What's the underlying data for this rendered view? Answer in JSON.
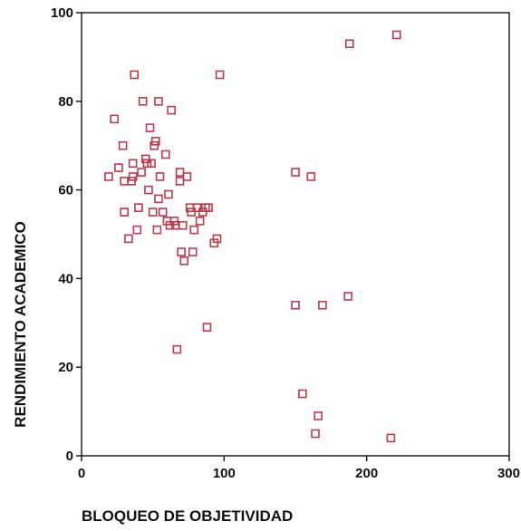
{
  "chart_data": {
    "type": "scatter",
    "title": "",
    "xlabel": "BLOQUEO DE OBJETIVIDAD",
    "ylabel": "RENDIMIENTO ACADEMICO",
    "xlim": [
      0,
      300
    ],
    "ylim": [
      0,
      100
    ],
    "x_ticks": [
      0,
      100,
      200,
      300
    ],
    "y_ticks": [
      0,
      20,
      40,
      60,
      80,
      100
    ],
    "grid": false,
    "marker": "open-square",
    "marker_color": "#c0394a",
    "points": [
      [
        19,
        63
      ],
      [
        23,
        76
      ],
      [
        26,
        65
      ],
      [
        29,
        70
      ],
      [
        30,
        62
      ],
      [
        30,
        55
      ],
      [
        33,
        49
      ],
      [
        35,
        62
      ],
      [
        36,
        66
      ],
      [
        36,
        63
      ],
      [
        37,
        86
      ],
      [
        39,
        51
      ],
      [
        40,
        56
      ],
      [
        42,
        64
      ],
      [
        43,
        80
      ],
      [
        45,
        67
      ],
      [
        46,
        66
      ],
      [
        47,
        60
      ],
      [
        48,
        74
      ],
      [
        49,
        66
      ],
      [
        50,
        55
      ],
      [
        51,
        70
      ],
      [
        52,
        71
      ],
      [
        53,
        51
      ],
      [
        54,
        58
      ],
      [
        54,
        80
      ],
      [
        55,
        63
      ],
      [
        57,
        55
      ],
      [
        59,
        68
      ],
      [
        60,
        53
      ],
      [
        61,
        59
      ],
      [
        62,
        52
      ],
      [
        63,
        78
      ],
      [
        65,
        53
      ],
      [
        66,
        52
      ],
      [
        67,
        24
      ],
      [
        69,
        62
      ],
      [
        69,
        64
      ],
      [
        70,
        46
      ],
      [
        71,
        52
      ],
      [
        72,
        44
      ],
      [
        74,
        63
      ],
      [
        76,
        56
      ],
      [
        77,
        55
      ],
      [
        78,
        46
      ],
      [
        79,
        51
      ],
      [
        81,
        56
      ],
      [
        83,
        53
      ],
      [
        85,
        55
      ],
      [
        87,
        56
      ],
      [
        88,
        29
      ],
      [
        89,
        56
      ],
      [
        93,
        48
      ],
      [
        95,
        49
      ],
      [
        97,
        86
      ],
      [
        150,
        64
      ],
      [
        150,
        34
      ],
      [
        155,
        14
      ],
      [
        161,
        63
      ],
      [
        164,
        5
      ],
      [
        166,
        9
      ],
      [
        169,
        34
      ],
      [
        187,
        36
      ],
      [
        188,
        93
      ],
      [
        217,
        4
      ],
      [
        221,
        95
      ]
    ]
  }
}
